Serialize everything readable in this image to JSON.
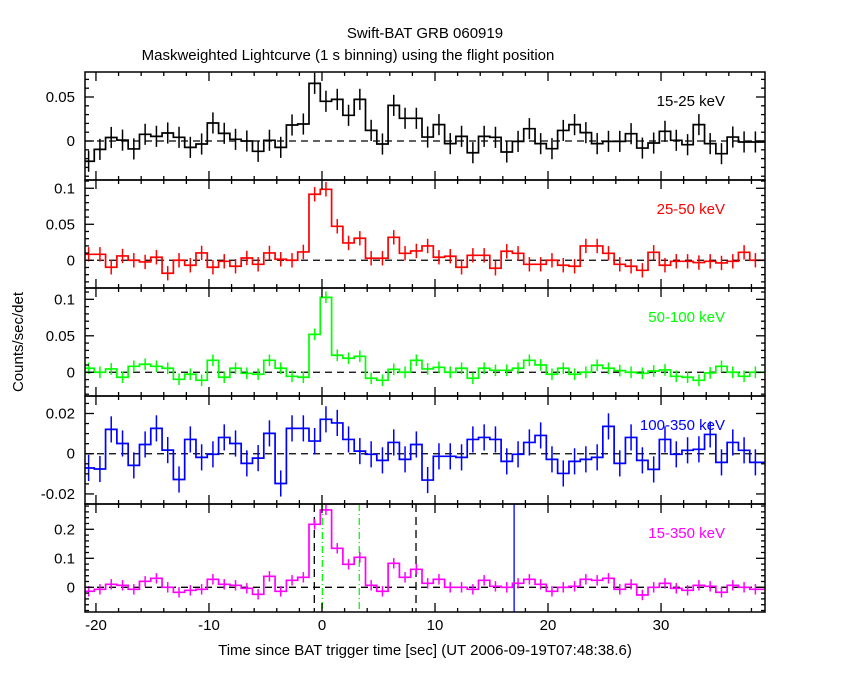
{
  "chart_data": {
    "type": "line",
    "title": "Swift-BAT GRB 060919",
    "subtitle": "Maskweighted Lightcurve (1 s binning) using the flight position",
    "xlabel": "Time since BAT trigger time [sec] (UT 2006-09-19T07:48:38.6)",
    "ylabel": "Counts/sec/det",
    "xlim": [
      -20.97,
      39.2
    ],
    "x_ticks": [
      "-20",
      "-10",
      "0",
      "10",
      "20",
      "30"
    ],
    "x_tick_values": [
      -20,
      -10,
      0,
      10,
      20,
      30
    ],
    "bin_start": -21.15,
    "bin_width": 1,
    "panels": [
      {
        "name": "15-25 keV",
        "color": "#000000",
        "ylim": [
          -0.0443,
          0.0784
        ],
        "minor": 0.01,
        "err": 0.012,
        "y_ticks": [
          "0",
          "0.05"
        ],
        "y_tick_values": [
          0,
          0.05
        ],
        "values": [
          -0.023,
          -0.0095,
          0.004,
          0.001,
          -0.009,
          0.0076,
          0.0053,
          0.0091,
          0.0042,
          -0.0072,
          -0.0034,
          0.0205,
          0.0087,
          0.0019,
          0,
          -0.0117,
          0.0008,
          -0.0072,
          0.0182,
          0.0193,
          0.0655,
          0.0451,
          0.0473,
          0.0292,
          0.0473,
          0.0121,
          -0.0034,
          0.0405,
          0.0258,
          0.0258,
          0.0045,
          0.0186,
          -0.003,
          0.0053,
          -0.0133,
          0.0053,
          0.0042,
          -0.0125,
          -0.0004,
          0.014,
          -0.003,
          -0.0087,
          0.012,
          0.0186,
          0.0095,
          -0.003,
          -0.0004,
          -0.0004,
          0.0083,
          -0.008,
          -0.0023,
          0.011,
          0.0008,
          -0.0042,
          0.0186,
          -0.003,
          -0.0144,
          0.0045,
          -0.0011,
          -0.0011,
          -0.0011
        ]
      },
      {
        "name": "25-50 keV",
        "color": "#ff0000",
        "ylim": [
          -0.0385,
          0.1115
        ],
        "minor": 0.01,
        "err": 0.01,
        "y_ticks": [
          "0",
          "0.05",
          "0.1"
        ],
        "y_tick_values": [
          0,
          0.05,
          0.1
        ],
        "values": [
          0.0083,
          0.0083,
          -0.0097,
          0.006,
          0,
          -0.0023,
          0.0042,
          -0.018,
          0,
          -0.0069,
          0.0102,
          -0.0097,
          -0.0014,
          -0.0083,
          0.0032,
          -0.0056,
          0.0102,
          0.0014,
          0,
          0.0116,
          0.0917,
          0.0986,
          0.0472,
          0.0241,
          0.0306,
          0.0028,
          0.0028,
          0.0319,
          0.0097,
          0.013,
          0.0199,
          0.0042,
          0.0056,
          -0.0097,
          0.0069,
          0.0069,
          -0.0111,
          0.0125,
          0.0097,
          -0.0056,
          -0.0056,
          0,
          -0.0069,
          -0.0083,
          0.0199,
          0.0199,
          0.0097,
          -0.0056,
          -0.0083,
          -0.0139,
          0.0111,
          -0.0069,
          -0.0014,
          -0.0014,
          -0.0032,
          -0.0014,
          -0.0037,
          -0.0014,
          0.0111,
          0,
          0
        ]
      },
      {
        "name": "50-100 keV",
        "color": "#00ff00",
        "ylim": [
          -0.0325,
          0.1155
        ],
        "minor": 0.01,
        "err": 0.008,
        "y_ticks": [
          "0",
          "0.05",
          "0.1"
        ],
        "y_tick_values": [
          0,
          0.05,
          0.1
        ],
        "values": [
          0.0055,
          0,
          0.0046,
          -0.0068,
          0.0082,
          0.011,
          0.0082,
          0.0055,
          -0.0096,
          -0.0027,
          -0.011,
          0.0164,
          -0.0068,
          0.0055,
          -0.0014,
          -0.0027,
          0.0164,
          0.0055,
          -0.0055,
          -0.0068,
          0.052,
          0.1027,
          0.0233,
          0.0192,
          0.0219,
          -0.0082,
          -0.011,
          0.0041,
          0,
          0.0164,
          0.0046,
          0.0068,
          0,
          0.0055,
          -0.0082,
          0.0055,
          0.0027,
          0.0027,
          0.0055,
          0.0164,
          0.01,
          -0.0027,
          0.0055,
          -0.0027,
          0,
          0.0096,
          0.0055,
          0.0023,
          0,
          -0.0014,
          0.0018,
          0.0032,
          -0.0055,
          -0.0068,
          -0.011,
          -0.0009,
          0.0082,
          0,
          -0.0055,
          0,
          0
        ]
      },
      {
        "name": "100-350 keV",
        "color": "#0000ff",
        "ylim": [
          -0.025,
          0.0287
        ],
        "minor": 0.005,
        "err": 0.0065,
        "y_ticks": [
          "-0.02",
          "0",
          "0.02"
        ],
        "y_tick_values": [
          -0.02,
          0,
          0.02
        ],
        "values": [
          -0.0071,
          -0.0076,
          0.0121,
          0.0051,
          -0.0058,
          0.0046,
          0.0126,
          0.0018,
          -0.0128,
          0.0071,
          -0.0018,
          -0.0003,
          0.0081,
          0.0051,
          -0.0048,
          -0.0022,
          0.0101,
          -0.0148,
          0.0126,
          0.0126,
          0.0063,
          0.0171,
          0.0153,
          0.0071,
          0.0013,
          -0.0003,
          -0.0033,
          0.0056,
          -0.0028,
          0.0046,
          -0.0131,
          -0.0013,
          -0.0013,
          -0.0018,
          0.0071,
          0.0081,
          0.0071,
          -0.0038,
          -0.0003,
          0.0056,
          0.0091,
          -0.0028,
          -0.0098,
          -0.0038,
          -0.0028,
          -0.0018,
          0.0136,
          -0.0048,
          0.0081,
          -0.0033,
          -0.0078,
          0.0071,
          -0.0003,
          0.0017,
          0.0022,
          0.0096,
          -0.0043,
          0.0056,
          0.0017,
          -0.0043,
          -0.0043
        ]
      },
      {
        "name": "15-350 keV",
        "color": "#ff00ff",
        "ylim": [
          -0.0851,
          0.2872
        ],
        "minor": 0.02,
        "err": 0.018,
        "y_ticks": [
          "0",
          "0.1",
          "0.2"
        ],
        "y_tick_values": [
          0,
          0.1,
          0.2
        ],
        "values": [
          -0.0138,
          -0.0069,
          0.0103,
          0.0069,
          -0.0069,
          0.0207,
          0.031,
          0,
          -0.0172,
          -0.0103,
          -0.0069,
          0.0276,
          0.0103,
          0.0069,
          -0.0034,
          -0.0241,
          0.0379,
          -0.0138,
          0.0241,
          0.0345,
          0.2172,
          0.2667,
          0.1345,
          0.0793,
          0.1034,
          0.0069,
          -0.0138,
          0.0828,
          0.0345,
          0.0621,
          0.0138,
          0.0276,
          0,
          0,
          -0.0069,
          0.0241,
          0.0034,
          0,
          0.0138,
          0.0276,
          0.0103,
          -0.0138,
          0,
          0.0034,
          0.0276,
          0.0241,
          0.031,
          -0.0069,
          0.0103,
          -0.0264,
          0,
          0.0138,
          -0.0034,
          -0.0103,
          0.0069,
          0.0034,
          -0.0172,
          0.0069,
          0,
          -0.0069,
          -0.0069
        ],
        "markers": [
          {
            "t": -0.68,
            "color": "#000000",
            "style": "dashed"
          },
          {
            "t": 8.32,
            "color": "#000000",
            "style": "dashed"
          },
          {
            "t": 0.03,
            "color": "#00ff00",
            "style": "dashdot"
          },
          {
            "t": 3.3,
            "color": "#00ff00",
            "style": "dashdot"
          },
          {
            "t": 17.0,
            "color": "#0000ff",
            "style": "solid"
          }
        ]
      }
    ]
  }
}
